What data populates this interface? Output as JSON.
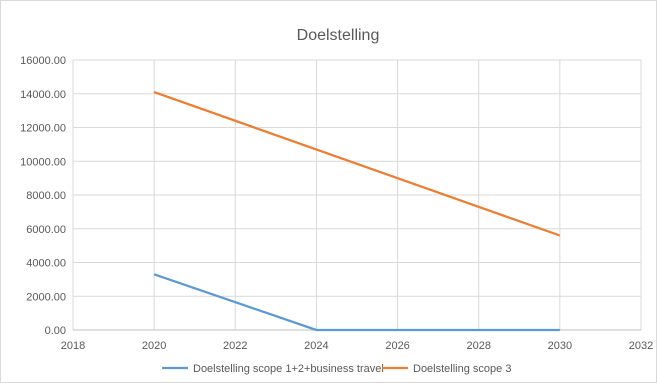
{
  "chart_data": {
    "type": "line",
    "title": "Doelstelling",
    "xlabel": "",
    "ylabel": "",
    "xlim": [
      2018,
      2032
    ],
    "ylim": [
      0,
      16000
    ],
    "x_ticks": [
      "2018",
      "2020",
      "2022",
      "2024",
      "2026",
      "2028",
      "2030",
      "2032"
    ],
    "y_ticks": [
      "0.00",
      "2000.00",
      "4000.00",
      "6000.00",
      "8000.00",
      "10000.00",
      "12000.00",
      "14000.00",
      "16000.00"
    ],
    "grid": true,
    "legend_position": "bottom",
    "series": [
      {
        "name": "Doelstelling scope 1+2+business travel",
        "color": "#5b9bd5",
        "points": [
          [
            2020,
            3300
          ],
          [
            2024,
            0
          ],
          [
            2030,
            0
          ]
        ]
      },
      {
        "name": "Doelstelling scope 3",
        "color": "#ed7d31",
        "points": [
          [
            2020,
            14100
          ],
          [
            2030,
            5600
          ]
        ]
      }
    ]
  }
}
